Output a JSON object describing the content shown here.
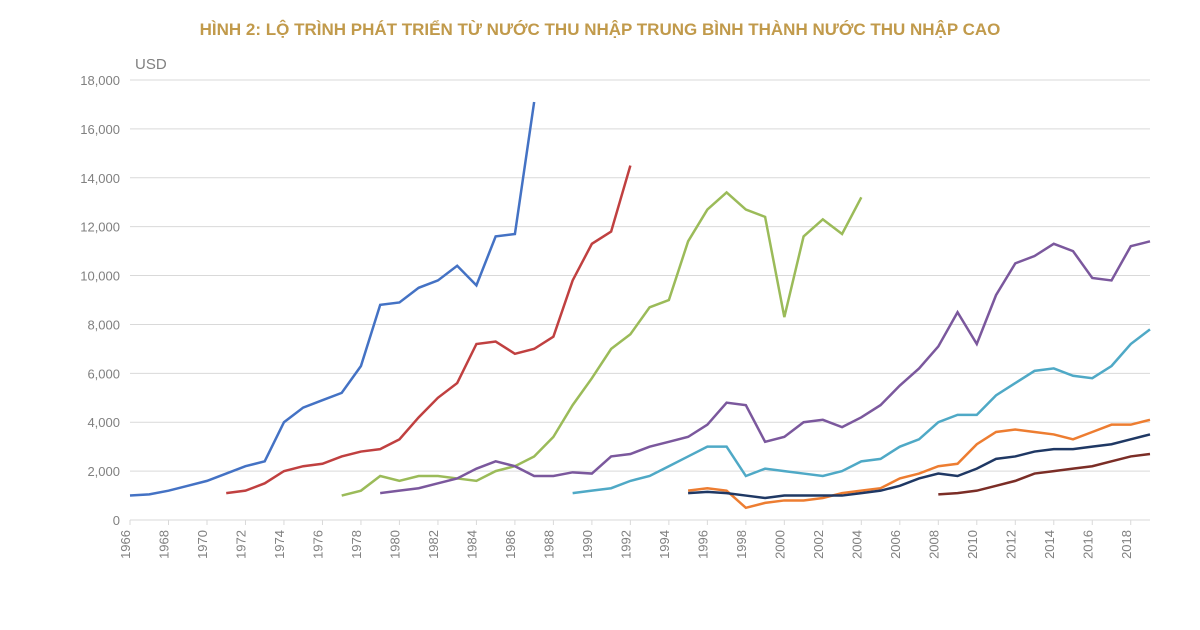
{
  "chart": {
    "type": "line",
    "title": "HÌNH 2: LỘ TRÌNH PHÁT TRIỂN TỪ NƯỚC THU NHẬP TRUNG BÌNH THÀNH NƯỚC THU NHẬP CAO",
    "title_color": "#C19A4B",
    "y_axis_label": "USD",
    "y_axis_label_color": "#808080",
    "background_color": "#ffffff",
    "grid_color": "#d9d9d9",
    "axis_label_color": "#808080",
    "axis_label_fontsize": 13,
    "line_width": 2.5,
    "ylim": [
      0,
      18000
    ],
    "ytick_step": 2000,
    "y_ticks": [
      0,
      2000,
      4000,
      6000,
      8000,
      10000,
      12000,
      14000,
      16000,
      18000
    ],
    "y_tick_labels": [
      "0",
      "2,000",
      "4,000",
      "6,000",
      "8,000",
      "10,000",
      "12,000",
      "14,000",
      "16,000",
      "18,000"
    ],
    "xlim": [
      1966,
      2019
    ],
    "x_ticks": [
      1966,
      1968,
      1970,
      1972,
      1974,
      1976,
      1978,
      1980,
      1982,
      1984,
      1986,
      1988,
      1990,
      1992,
      1994,
      1996,
      1998,
      2000,
      2002,
      2004,
      2006,
      2008,
      2010,
      2012,
      2014,
      2016,
      2018
    ],
    "series": [
      {
        "name": "series-blue",
        "color": "#4472C4",
        "data": [
          [
            1966,
            1000
          ],
          [
            1967,
            1050
          ],
          [
            1968,
            1200
          ],
          [
            1969,
            1400
          ],
          [
            1970,
            1600
          ],
          [
            1971,
            1900
          ],
          [
            1972,
            2200
          ],
          [
            1973,
            2400
          ],
          [
            1974,
            4000
          ],
          [
            1975,
            4600
          ],
          [
            1976,
            4900
          ],
          [
            1977,
            5200
          ],
          [
            1978,
            6300
          ],
          [
            1979,
            8800
          ],
          [
            1980,
            8900
          ],
          [
            1981,
            9500
          ],
          [
            1982,
            9800
          ],
          [
            1983,
            10400
          ],
          [
            1984,
            9600
          ],
          [
            1985,
            11600
          ],
          [
            1986,
            11700
          ],
          [
            1987,
            17100
          ]
        ]
      },
      {
        "name": "series-red",
        "color": "#C04040",
        "data": [
          [
            1971,
            1100
          ],
          [
            1972,
            1200
          ],
          [
            1973,
            1500
          ],
          [
            1974,
            2000
          ],
          [
            1975,
            2200
          ],
          [
            1976,
            2300
          ],
          [
            1977,
            2600
          ],
          [
            1978,
            2800
          ],
          [
            1979,
            2900
          ],
          [
            1980,
            3300
          ],
          [
            1981,
            4200
          ],
          [
            1982,
            5000
          ],
          [
            1983,
            5600
          ],
          [
            1984,
            7200
          ],
          [
            1985,
            7300
          ],
          [
            1986,
            6800
          ],
          [
            1987,
            7000
          ],
          [
            1988,
            7500
          ],
          [
            1989,
            9800
          ],
          [
            1990,
            11300
          ],
          [
            1991,
            11800
          ],
          [
            1992,
            14500
          ]
        ]
      },
      {
        "name": "series-green",
        "color": "#9BBB59",
        "data": [
          [
            1977,
            1000
          ],
          [
            1978,
            1200
          ],
          [
            1979,
            1800
          ],
          [
            1980,
            1600
          ],
          [
            1981,
            1800
          ],
          [
            1982,
            1800
          ],
          [
            1983,
            1700
          ],
          [
            1984,
            1600
          ],
          [
            1985,
            2000
          ],
          [
            1986,
            2200
          ],
          [
            1987,
            2600
          ],
          [
            1988,
            3400
          ],
          [
            1989,
            4700
          ],
          [
            1990,
            5800
          ],
          [
            1991,
            7000
          ],
          [
            1992,
            7600
          ],
          [
            1993,
            8700
          ],
          [
            1994,
            9000
          ],
          [
            1995,
            11400
          ],
          [
            1996,
            12700
          ],
          [
            1997,
            13400
          ],
          [
            1998,
            12700
          ],
          [
            1999,
            12400
          ],
          [
            2000,
            8300
          ],
          [
            2001,
            11600
          ],
          [
            2002,
            12300
          ],
          [
            2003,
            11700
          ],
          [
            2004,
            13200
          ]
        ]
      },
      {
        "name": "series-purple",
        "color": "#7B589D",
        "data": [
          [
            1979,
            1100
          ],
          [
            1980,
            1200
          ],
          [
            1981,
            1300
          ],
          [
            1982,
            1500
          ],
          [
            1983,
            1700
          ],
          [
            1984,
            2100
          ],
          [
            1985,
            2400
          ],
          [
            1986,
            2200
          ],
          [
            1987,
            1800
          ],
          [
            1988,
            1800
          ],
          [
            1989,
            1950
          ],
          [
            1990,
            1900
          ],
          [
            1991,
            2600
          ],
          [
            1992,
            2700
          ],
          [
            1993,
            3000
          ],
          [
            1994,
            3200
          ],
          [
            1995,
            3400
          ],
          [
            1996,
            3900
          ],
          [
            1997,
            4800
          ],
          [
            1998,
            4700
          ],
          [
            1999,
            3200
          ],
          [
            2000,
            3400
          ],
          [
            2001,
            4000
          ],
          [
            2002,
            4100
          ],
          [
            2003,
            3800
          ],
          [
            2004,
            4200
          ],
          [
            2005,
            4700
          ],
          [
            2006,
            5500
          ],
          [
            2007,
            6200
          ],
          [
            2008,
            7100
          ],
          [
            2009,
            8500
          ],
          [
            2010,
            7200
          ],
          [
            2011,
            9200
          ],
          [
            2012,
            10500
          ],
          [
            2013,
            10800
          ],
          [
            2014,
            11300
          ],
          [
            2015,
            11000
          ],
          [
            2016,
            9900
          ],
          [
            2017,
            9800
          ],
          [
            2018,
            11200
          ],
          [
            2019,
            11400
          ]
        ]
      },
      {
        "name": "series-cyan",
        "color": "#4FA9C6",
        "data": [
          [
            1989,
            1100
          ],
          [
            1990,
            1200
          ],
          [
            1991,
            1300
          ],
          [
            1992,
            1600
          ],
          [
            1993,
            1800
          ],
          [
            1994,
            2200
          ],
          [
            1995,
            2600
          ],
          [
            1996,
            3000
          ],
          [
            1997,
            3000
          ],
          [
            1998,
            1800
          ],
          [
            1999,
            2100
          ],
          [
            2000,
            2000
          ],
          [
            2001,
            1900
          ],
          [
            2002,
            1800
          ],
          [
            2003,
            2000
          ],
          [
            2004,
            2400
          ],
          [
            2005,
            2500
          ],
          [
            2006,
            3000
          ],
          [
            2007,
            3300
          ],
          [
            2008,
            4000
          ],
          [
            2009,
            4300
          ],
          [
            2010,
            4300
          ],
          [
            2011,
            5100
          ],
          [
            2012,
            5600
          ],
          [
            2013,
            6100
          ],
          [
            2014,
            6200
          ],
          [
            2015,
            5900
          ],
          [
            2016,
            5800
          ],
          [
            2017,
            6300
          ],
          [
            2018,
            7200
          ],
          [
            2019,
            7800
          ]
        ]
      },
      {
        "name": "series-orange",
        "color": "#ED7D31",
        "data": [
          [
            1995,
            1200
          ],
          [
            1996,
            1300
          ],
          [
            1997,
            1200
          ],
          [
            1998,
            500
          ],
          [
            1999,
            700
          ],
          [
            2000,
            800
          ],
          [
            2001,
            800
          ],
          [
            2002,
            900
          ],
          [
            2003,
            1100
          ],
          [
            2004,
            1200
          ],
          [
            2005,
            1300
          ],
          [
            2006,
            1700
          ],
          [
            2007,
            1900
          ],
          [
            2008,
            2200
          ],
          [
            2009,
            2300
          ],
          [
            2010,
            3100
          ],
          [
            2011,
            3600
          ],
          [
            2012,
            3700
          ],
          [
            2013,
            3600
          ],
          [
            2014,
            3500
          ],
          [
            2015,
            3300
          ],
          [
            2016,
            3600
          ],
          [
            2017,
            3900
          ],
          [
            2018,
            3900
          ],
          [
            2019,
            4100
          ]
        ]
      },
      {
        "name": "series-navy",
        "color": "#1F3864",
        "data": [
          [
            1995,
            1100
          ],
          [
            1996,
            1150
          ],
          [
            1997,
            1100
          ],
          [
            1998,
            1000
          ],
          [
            1999,
            900
          ],
          [
            2000,
            1000
          ],
          [
            2001,
            1000
          ],
          [
            2002,
            1000
          ],
          [
            2003,
            1000
          ],
          [
            2004,
            1100
          ],
          [
            2005,
            1200
          ],
          [
            2006,
            1400
          ],
          [
            2007,
            1700
          ],
          [
            2008,
            1900
          ],
          [
            2009,
            1800
          ],
          [
            2010,
            2100
          ],
          [
            2011,
            2500
          ],
          [
            2012,
            2600
          ],
          [
            2013,
            2800
          ],
          [
            2014,
            2900
          ],
          [
            2015,
            2900
          ],
          [
            2016,
            3000
          ],
          [
            2017,
            3100
          ],
          [
            2018,
            3300
          ],
          [
            2019,
            3500
          ]
        ]
      },
      {
        "name": "series-darkred",
        "color": "#7B2D26",
        "data": [
          [
            2008,
            1050
          ],
          [
            2009,
            1100
          ],
          [
            2010,
            1200
          ],
          [
            2011,
            1400
          ],
          [
            2012,
            1600
          ],
          [
            2013,
            1900
          ],
          [
            2014,
            2000
          ],
          [
            2015,
            2100
          ],
          [
            2016,
            2200
          ],
          [
            2017,
            2400
          ],
          [
            2018,
            2600
          ],
          [
            2019,
            2700
          ]
        ]
      }
    ]
  }
}
